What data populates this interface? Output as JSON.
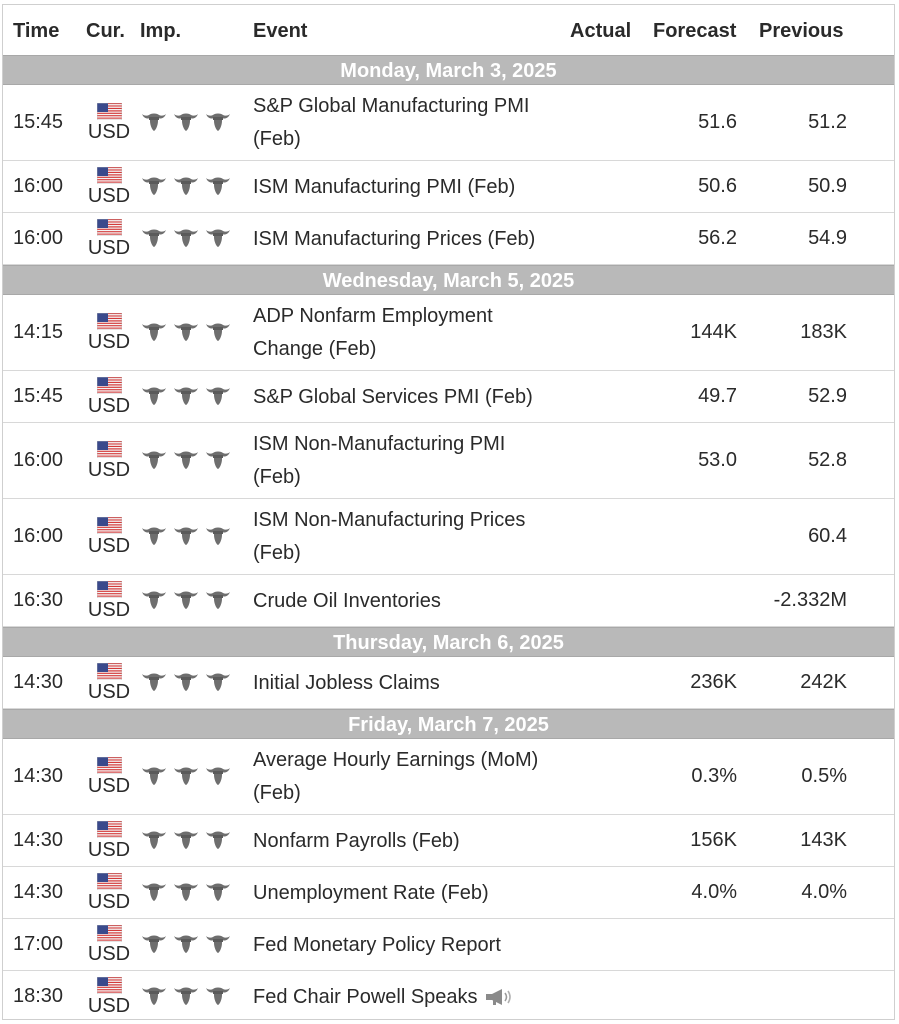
{
  "headers": {
    "time": "Time",
    "cur": "Cur.",
    "imp": "Imp.",
    "event": "Event",
    "actual": "Actual",
    "forecast": "Forecast",
    "previous": "Previous"
  },
  "colors": {
    "day_bar": "#b9b9b9",
    "text": "#2a2a2a",
    "bull_icon": "#707070"
  },
  "groups": [
    {
      "day": "Monday, March 3, 2025",
      "rows": [
        {
          "time": "15:45",
          "cur": "USD",
          "event": [
            "S&P Global Manufacturing PMI",
            "(Feb)"
          ],
          "actual": "",
          "forecast": "51.6",
          "previous": "51.2"
        },
        {
          "time": "16:00",
          "cur": "USD",
          "event": [
            "ISM Manufacturing PMI (Feb)"
          ],
          "actual": "",
          "forecast": "50.6",
          "previous": "50.9"
        },
        {
          "time": "16:00",
          "cur": "USD",
          "event": [
            "ISM Manufacturing Prices (Feb)"
          ],
          "actual": "",
          "forecast": "56.2",
          "previous": "54.9"
        }
      ]
    },
    {
      "day": "Wednesday, March 5, 2025",
      "rows": [
        {
          "time": "14:15",
          "cur": "USD",
          "event": [
            "ADP Nonfarm Employment",
            "Change (Feb)"
          ],
          "actual": "",
          "forecast": "144K",
          "previous": "183K"
        },
        {
          "time": "15:45",
          "cur": "USD",
          "event": [
            "S&P Global Services PMI (Feb)"
          ],
          "actual": "",
          "forecast": "49.7",
          "previous": "52.9"
        },
        {
          "time": "16:00",
          "cur": "USD",
          "event": [
            "ISM Non-Manufacturing PMI",
            "(Feb)"
          ],
          "actual": "",
          "forecast": "53.0",
          "previous": "52.8"
        },
        {
          "time": "16:00",
          "cur": "USD",
          "event": [
            "ISM Non-Manufacturing Prices",
            "(Feb)"
          ],
          "actual": "",
          "forecast": "",
          "previous": "60.4"
        },
        {
          "time": "16:30",
          "cur": "USD",
          "event": [
            "Crude Oil Inventories"
          ],
          "actual": "",
          "forecast": "",
          "previous": "-2.332M"
        }
      ]
    },
    {
      "day": "Thursday, March 6, 2025",
      "rows": [
        {
          "time": "14:30",
          "cur": "USD",
          "event": [
            "Initial Jobless Claims"
          ],
          "actual": "",
          "forecast": "236K",
          "previous": "242K"
        }
      ]
    },
    {
      "day": "Friday, March 7, 2025",
      "rows": [
        {
          "time": "14:30",
          "cur": "USD",
          "event": [
            "Average Hourly Earnings (MoM)",
            "(Feb)"
          ],
          "actual": "",
          "forecast": "0.3%",
          "previous": "0.5%"
        },
        {
          "time": "14:30",
          "cur": "USD",
          "event": [
            "Nonfarm Payrolls (Feb)"
          ],
          "actual": "",
          "forecast": "156K",
          "previous": "143K"
        },
        {
          "time": "14:30",
          "cur": "USD",
          "event": [
            "Unemployment Rate (Feb)"
          ],
          "actual": "",
          "forecast": "4.0%",
          "previous": "4.0%"
        },
        {
          "time": "17:00",
          "cur": "USD",
          "event": [
            "Fed Monetary Policy Report"
          ],
          "actual": "",
          "forecast": "",
          "previous": ""
        },
        {
          "time": "18:30",
          "cur": "USD",
          "event": [
            "Fed Chair Powell Speaks"
          ],
          "speaker": true,
          "actual": "",
          "forecast": "",
          "previous": ""
        }
      ]
    }
  ],
  "icons": {
    "flag": "us-flag-icon",
    "importance": "bull-icon",
    "speech": "speaker-icon"
  }
}
